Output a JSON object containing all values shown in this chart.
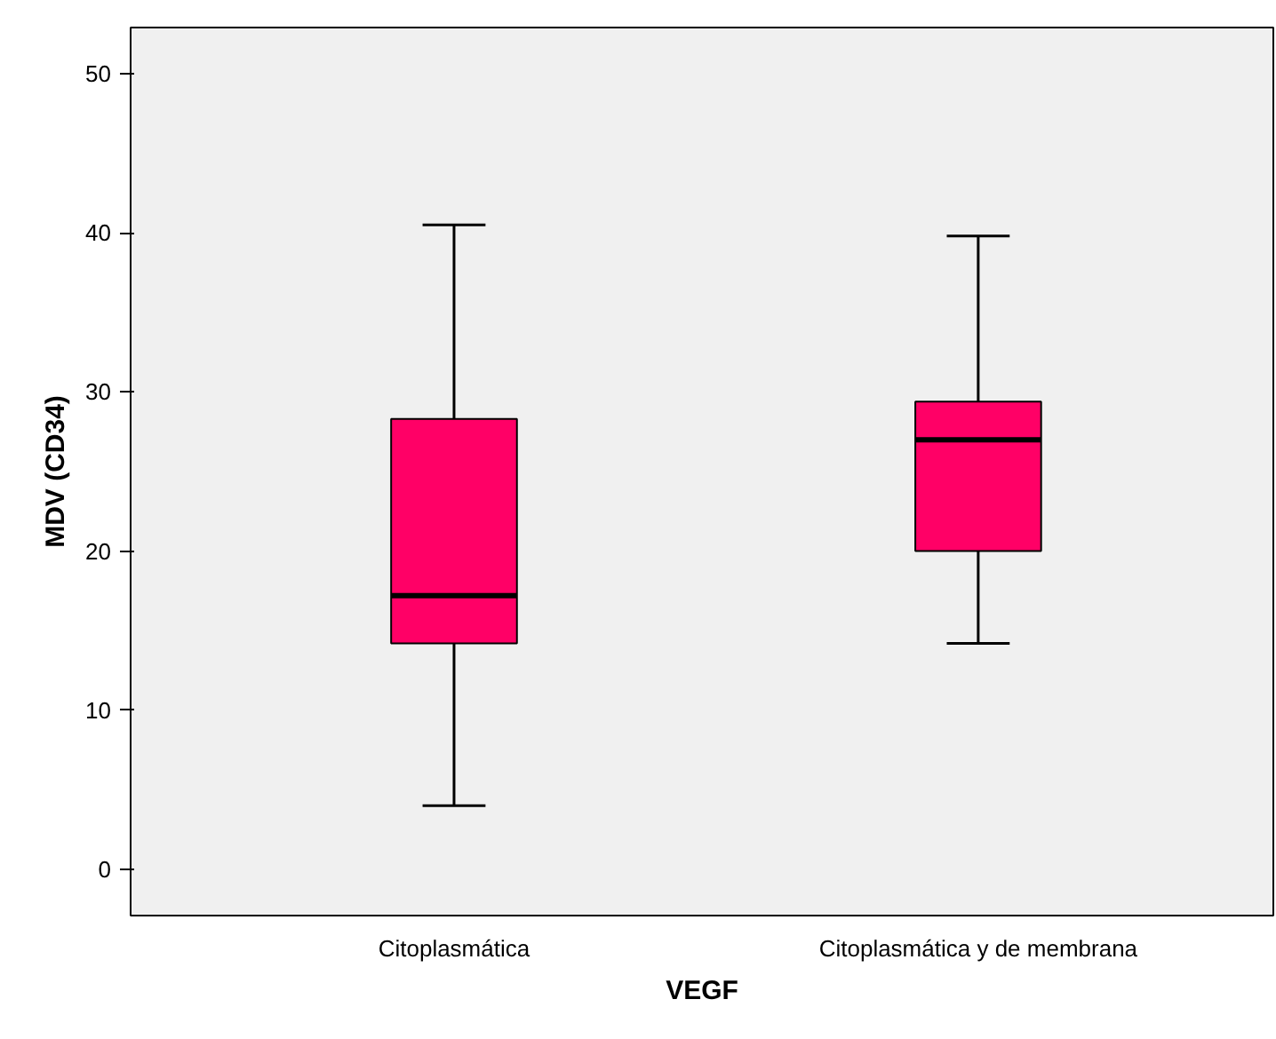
{
  "chart_data": {
    "type": "box",
    "xlabel": "VEGF",
    "ylabel": "MDV (CD34)",
    "categories": [
      "Citoplasmática",
      "Citoplasmática y de membrana"
    ],
    "boxes": [
      {
        "low": 4.0,
        "q1": 14.2,
        "median": 17.2,
        "q3": 28.3,
        "high": 40.5
      },
      {
        "low": 14.2,
        "q1": 20.0,
        "median": 27.0,
        "q3": 29.4,
        "high": 39.8
      }
    ],
    "color": "#ff0066",
    "ylim": [
      -2.9,
      52.9
    ],
    "yticks": [
      0,
      10,
      20,
      30,
      40,
      50
    ],
    "grid": false
  }
}
